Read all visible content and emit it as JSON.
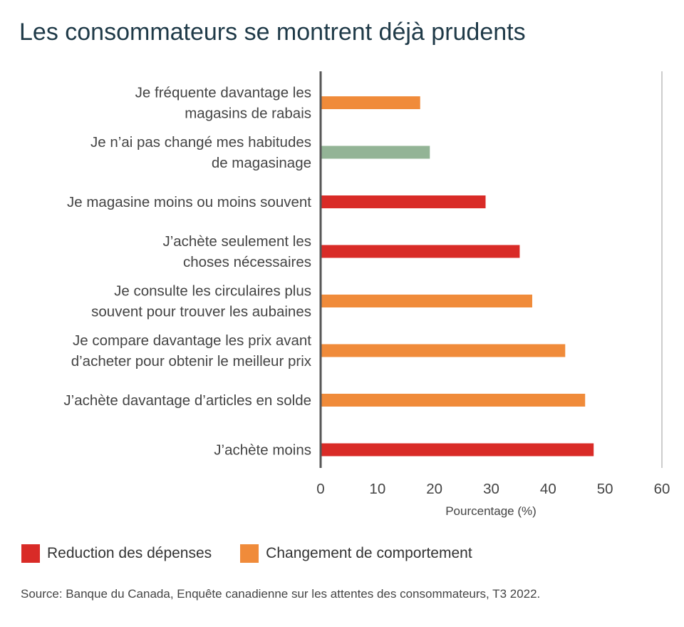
{
  "title": "Les consommateurs se montrent déjà prudents",
  "chart_data": {
    "type": "bar",
    "orientation": "horizontal",
    "categories": [
      [
        "Je fréquente davantage les",
        "magasins de rabais"
      ],
      [
        "Je n’ai pas changé mes habitudes",
        "de magasinage"
      ],
      [
        "Je magasine moins ou moins souvent"
      ],
      [
        "J’achète seulement les",
        "choses nécessaires"
      ],
      [
        "Je consulte les circulaires plus",
        "souvent pour trouver les aubaines"
      ],
      [
        "Je compare davantage les prix avant",
        "d’acheter pour obtenir le meilleur prix"
      ],
      [
        "J’achète davantage d’articles en solde"
      ],
      [
        "J’achète moins"
      ]
    ],
    "values": [
      17.5,
      19.2,
      29,
      35,
      37.2,
      43,
      46.5,
      48
    ],
    "groups": [
      "behaviour",
      "none",
      "reduction",
      "reduction",
      "behaviour",
      "behaviour",
      "behaviour",
      "reduction"
    ],
    "colors": {
      "reduction": "#d92b27",
      "behaviour": "#f08b3a",
      "none": "#93b496"
    },
    "xlim": [
      0,
      60
    ],
    "xticks": [
      0,
      10,
      20,
      30,
      40,
      50,
      60
    ],
    "xlabel": "Pourcentage (%)",
    "grid": false,
    "legend_position": "bottom-left"
  },
  "legend": [
    {
      "label": "Reduction des dépenses",
      "color": "#d92b27"
    },
    {
      "label": "Changement de comportement",
      "color": "#f08b3a"
    }
  ],
  "source": "Source: Banque du Canada, Enquête canadienne sur les attentes des consommateurs, T3 2022."
}
